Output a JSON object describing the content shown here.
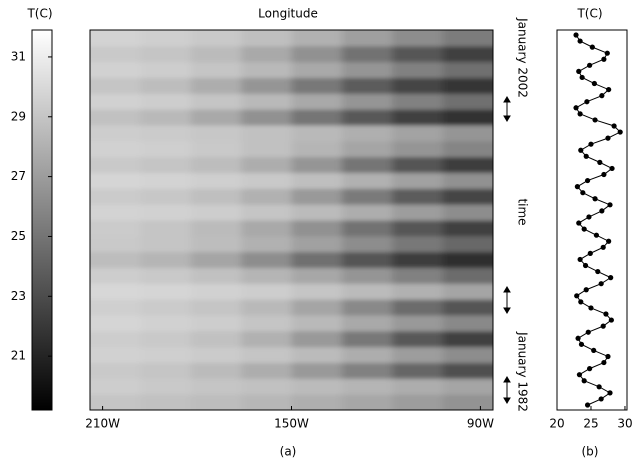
{
  "chart_data": [
    {
      "type": "colorbar",
      "title": "T(C)",
      "ylim": [
        19.2,
        31.9
      ],
      "yticks": [
        21,
        23,
        25,
        27,
        29,
        31
      ],
      "colors": [
        "#000000",
        "#ffffff"
      ]
    },
    {
      "type": "heatmap",
      "title": "Longitude",
      "caption": "(a)",
      "ylabel": "time",
      "annotations": [
        "January 2002",
        "January 1982"
      ],
      "xlim": [
        214,
        86
      ],
      "xticks": [
        {
          "value": 210,
          "label": "210W"
        },
        {
          "value": 150,
          "label": "150W"
        },
        {
          "value": 90,
          "label": "90W"
        }
      ],
      "x": [
        206,
        190,
        174,
        158,
        142,
        126,
        110,
        94
      ],
      "cell_width": 16,
      "rows": [
        [
          29.0,
          28.8,
          28.6,
          28.3,
          27.9,
          27.5,
          27.0,
          26.5
        ],
        [
          29.4,
          29.2,
          29.0,
          28.8,
          28.5,
          28.2,
          27.8,
          27.4
        ],
        [
          29.2,
          29.0,
          28.5,
          27.8,
          26.8,
          25.6,
          24.3,
          23.2
        ],
        [
          29.6,
          29.5,
          29.3,
          29.0,
          28.5,
          27.8,
          27.0,
          26.2
        ],
        [
          29.4,
          29.2,
          28.8,
          28.0,
          26.8,
          25.2,
          23.6,
          22.4
        ],
        [
          29.8,
          29.6,
          29.4,
          29.0,
          28.4,
          27.6,
          26.8,
          26.0
        ],
        [
          29.5,
          29.3,
          29.0,
          28.4,
          27.4,
          26.0,
          24.6,
          23.4
        ],
        [
          29.9,
          29.8,
          29.6,
          29.4,
          29.0,
          28.5,
          28.0,
          27.4
        ],
        [
          29.4,
          29.2,
          28.8,
          28.2,
          27.5,
          26.6,
          25.6,
          24.6
        ],
        [
          28.6,
          28.2,
          27.4,
          26.2,
          24.8,
          23.4,
          22.2,
          21.5
        ],
        [
          29.2,
          29.0,
          28.6,
          28.0,
          27.2,
          26.2,
          25.2,
          24.4
        ],
        [
          29.3,
          29.0,
          28.5,
          27.6,
          26.4,
          24.9,
          23.5,
          22.4
        ],
        [
          29.7,
          29.6,
          29.4,
          29.0,
          28.5,
          27.8,
          27.0,
          26.2
        ],
        [
          29.3,
          29.1,
          28.7,
          28.0,
          26.8,
          25.3,
          23.8,
          22.6
        ],
        [
          29.8,
          29.7,
          29.5,
          29.2,
          28.7,
          28.0,
          27.2,
          26.4
        ],
        [
          29.2,
          29.0,
          28.6,
          27.8,
          26.6,
          25.0,
          23.4,
          22.2
        ],
        [
          29.6,
          29.5,
          29.2,
          28.8,
          28.2,
          27.4,
          26.6,
          25.8
        ],
        [
          29.4,
          29.3,
          29.1,
          28.8,
          28.4,
          27.9,
          27.3,
          26.6
        ],
        [
          28.8,
          28.4,
          27.6,
          26.4,
          25.0,
          23.6,
          22.4,
          21.6
        ],
        [
          29.6,
          29.4,
          29.0,
          28.4,
          27.6,
          26.6,
          25.6,
          24.8
        ],
        [
          29.0,
          28.6,
          27.8,
          26.6,
          25.2,
          23.8,
          22.6,
          21.8
        ],
        [
          29.6,
          29.4,
          29.0,
          28.4,
          27.6,
          26.6,
          25.6,
          24.8
        ],
        [
          29.2,
          29.0,
          28.5,
          27.6,
          26.4,
          24.9,
          23.5,
          22.4
        ],
        [
          29.7,
          29.5,
          29.2,
          28.7,
          28.0,
          27.1,
          26.2,
          25.4
        ]
      ]
    },
    {
      "type": "line",
      "title": "T(C)",
      "caption": "(b)",
      "color": "#000000",
      "xlim": [
        20,
        30.3
      ],
      "xticks": [
        20,
        25,
        30
      ],
      "values": [
        24.5,
        26.5,
        27.8,
        26.2,
        24.0,
        23.3,
        24.8,
        26.9,
        27.5,
        25.4,
        23.6,
        23.1,
        24.6,
        26.8,
        28.0,
        27.2,
        25.0,
        23.5,
        22.9,
        24.3,
        26.5,
        27.9,
        26.0,
        24.2,
        23.4,
        24.9,
        26.8,
        27.6,
        25.8,
        24.0,
        23.2,
        24.7,
        26.6,
        27.8,
        25.6,
        23.8,
        23.0,
        24.5,
        26.9,
        28.1,
        26.3,
        24.3,
        23.5,
        25.0,
        27.5,
        29.3,
        28.4,
        25.6,
        23.4,
        22.8,
        24.4,
        26.6,
        27.6,
        25.5,
        23.7,
        23.2,
        24.8,
        26.9,
        27.4,
        25.2,
        23.4,
        22.8
      ]
    }
  ]
}
